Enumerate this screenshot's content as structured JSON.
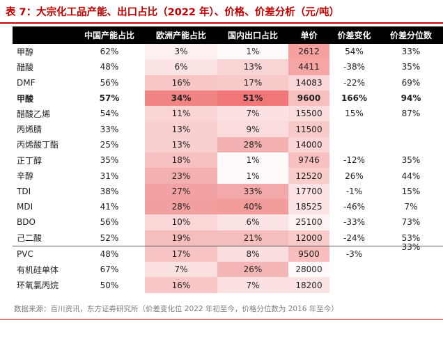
{
  "title": "表 7：大宗化工品产能、出口占比（2022 年）、价格、价差分析（元/吨）",
  "headers": [
    "",
    "中国产能占比",
    "欧洲产能占比",
    "国内出口占比",
    "单价",
    "价差变化",
    "价差分位数"
  ],
  "rows": [
    {
      "name": "甲醇",
      "cn": "62%",
      "eu": "3%",
      "exp": "1%",
      "price": "2612",
      "chg": "54%",
      "pct": "33%",
      "eu_bg": "#fdf0f0",
      "exp_bg": "#fffafa",
      "price_bg": "#f6a0a0"
    },
    {
      "name": "醋酸",
      "cn": "48%",
      "eu": "6%",
      "exp": "13%",
      "price": "4411",
      "chg": "-38%",
      "pct": "35%",
      "eu_bg": "#fce4e4",
      "exp_bg": "#f9d4d4",
      "price_bg": "#f6a5a5"
    },
    {
      "name": "DMF",
      "cn": "56%",
      "eu": "16%",
      "exp": "17%",
      "price": "14083",
      "chg": "-22%",
      "pct": "69%",
      "eu_bg": "#f8c6c6",
      "exp_bg": "#f7c9c9",
      "price_bg": "#fbd6d6"
    },
    {
      "name": "甲酸",
      "cn": "57%",
      "eu": "34%",
      "exp": "51%",
      "price": "9600",
      "chg": "166%",
      "pct": "94%",
      "eu_bg": "#f08484",
      "exp_bg": "#ef7777",
      "price_bg": "#f8bfbf",
      "bold": true
    },
    {
      "name": "醋酸乙烯",
      "cn": "54%",
      "eu": "11%",
      "exp": "7%",
      "price": "15500",
      "chg": "15%",
      "pct": "87%",
      "eu_bg": "#fad3d3",
      "exp_bg": "#fbe1e1",
      "price_bg": "#fbdcdc"
    },
    {
      "name": "丙烯腈",
      "cn": "33%",
      "eu": "13%",
      "exp": "9%",
      "price": "11500",
      "chg": "",
      "pct": "",
      "eu_bg": "#f9cfcf",
      "exp_bg": "#fbdcdc",
      "price_bg": "#f9caca"
    },
    {
      "name": "丙烯酸丁酯",
      "cn": "25%",
      "eu": "13%",
      "exp": "28%",
      "price": "14000",
      "chg": "",
      "pct": "",
      "eu_bg": "#f9cfcf",
      "exp_bg": "#f4b1b1",
      "price_bg": "#fbd5d5"
    },
    {
      "name": "正丁醇",
      "cn": "35%",
      "eu": "18%",
      "exp": "1%",
      "price": "9746",
      "chg": "-12%",
      "pct": "35%",
      "eu_bg": "#f7c1c1",
      "exp_bg": "#fffafa",
      "price_bg": "#f8c0c0"
    },
    {
      "name": "辛醇",
      "cn": "31%",
      "eu": "23%",
      "exp": "1%",
      "price": "12520",
      "chg": "26%",
      "pct": "44%",
      "eu_bg": "#f4afaf",
      "exp_bg": "#fffafa",
      "price_bg": "#facdcd"
    },
    {
      "name": "TDI",
      "cn": "38%",
      "eu": "27%",
      "exp": "33%",
      "price": "17700",
      "chg": "-1%",
      "pct": "15%",
      "eu_bg": "#f2a2a2",
      "exp_bg": "#f3a9a9",
      "price_bg": "#fce2e2"
    },
    {
      "name": "MDI",
      "cn": "41%",
      "eu": "28%",
      "exp": "40%",
      "price": "18525",
      "chg": "-46%",
      "pct": "7%",
      "eu_bg": "#f29f9f",
      "exp_bg": "#f29c9c",
      "price_bg": "#fce4e4"
    },
    {
      "name": "BDO",
      "cn": "56%",
      "eu": "10%",
      "exp": "6%",
      "price": "25100",
      "chg": "-33%",
      "pct": "73%",
      "eu_bg": "#fad6d6",
      "exp_bg": "#fce4e4",
      "price_bg": "#fef3f3"
    },
    {
      "name": "己二酸",
      "cn": "52%",
      "eu": "19%",
      "exp": "21%",
      "price": "12000",
      "chg": "-24%",
      "pct": "53%",
      "eu_bg": "#f6bdbd",
      "exp_bg": "#f6bdbd",
      "price_bg": "#facbcb"
    },
    {
      "name": "PVC",
      "cn": "48%",
      "eu": "17%",
      "exp": "8%",
      "price": "9500",
      "chg": "-3%",
      "pct": "",
      "eu_bg": "#f7c3c3",
      "exp_bg": "#fbdfdf",
      "price_bg": "#f8bebe",
      "sep": true
    },
    {
      "name": "有机硅单体",
      "cn": "67%",
      "eu": "7%",
      "exp": "26%",
      "price": "28000",
      "chg": "",
      "pct": "",
      "eu_bg": "#fbe0e0",
      "exp_bg": "#f4b5b5",
      "price_bg": "#fff9f9"
    },
    {
      "name": "环氧氯丙烷",
      "cn": "50%",
      "eu": "16%",
      "exp": "7%",
      "price": "18200",
      "chg": "",
      "pct": "",
      "eu_bg": "#f8c6c6",
      "exp_bg": "#fbe1e1",
      "price_bg": "#fce3e3"
    }
  ],
  "pvc_pct_floating": "33%",
  "note": "数据来源：百川资讯，东方证券研究所（价差变化位 2022 年初至今，价格分位数为 2016 年至今）",
  "colors": {
    "accent": "#c00000",
    "header_bg": "#000000",
    "note": "#7f7f7f"
  }
}
